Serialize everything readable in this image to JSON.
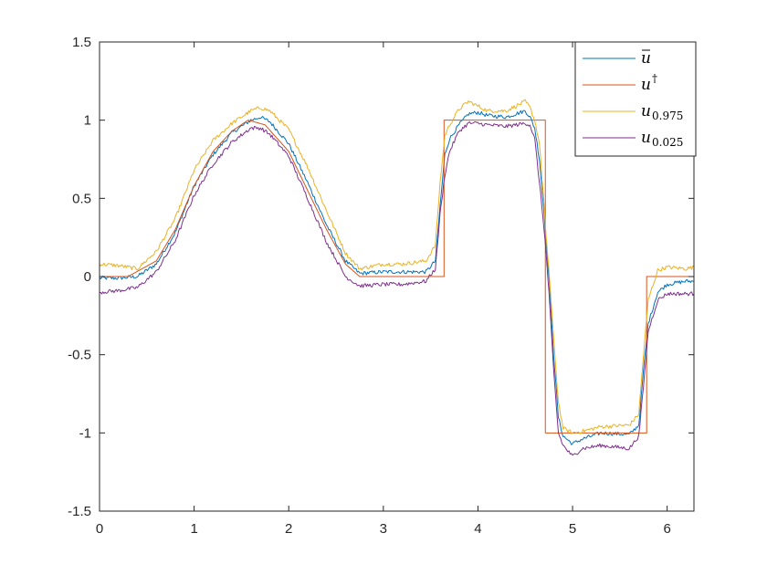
{
  "chart_data": {
    "type": "line",
    "title": "",
    "xlabel": "",
    "ylabel": "",
    "xlim": [
      0,
      6.2832
    ],
    "ylim": [
      -1.5,
      1.5
    ],
    "xticks": [
      0,
      1,
      2,
      3,
      4,
      5,
      6
    ],
    "yticks": [
      1.5,
      1,
      0.5,
      0,
      -0.5,
      -1,
      -1.5
    ],
    "xtick_labels": [
      "0",
      "1",
      "2",
      "3",
      "4",
      "5",
      "6"
    ],
    "ytick_labels": [
      "1.5",
      "1",
      "0.5",
      "0",
      "-0.5",
      "-1",
      "-1.5"
    ],
    "grid": false,
    "legend_position": "top-right",
    "series": [
      {
        "name": "ū",
        "legend_base": "u",
        "legend_sub": "",
        "legend_sup": "",
        "legend_bar": true,
        "color": "#0072BD",
        "points": [
          [
            0,
            -0.01
          ],
          [
            0.2,
            -0.01
          ],
          [
            0.4,
            0.0
          ],
          [
            0.6,
            0.08
          ],
          [
            0.8,
            0.28
          ],
          [
            1.0,
            0.58
          ],
          [
            1.2,
            0.78
          ],
          [
            1.4,
            0.92
          ],
          [
            1.6,
            1.0
          ],
          [
            1.7,
            1.02
          ],
          [
            1.8,
            0.99
          ],
          [
            2.0,
            0.85
          ],
          [
            2.2,
            0.6
          ],
          [
            2.4,
            0.33
          ],
          [
            2.6,
            0.1
          ],
          [
            2.75,
            0.02
          ],
          [
            3.0,
            0.03
          ],
          [
            3.2,
            0.03
          ],
          [
            3.45,
            0.03
          ],
          [
            3.55,
            0.1
          ],
          [
            3.6,
            0.45
          ],
          [
            3.65,
            0.78
          ],
          [
            3.7,
            0.88
          ],
          [
            3.8,
            0.97
          ],
          [
            3.9,
            1.04
          ],
          [
            4.0,
            1.05
          ],
          [
            4.1,
            1.03
          ],
          [
            4.3,
            1.02
          ],
          [
            4.5,
            1.06
          ],
          [
            4.55,
            1.02
          ],
          [
            4.6,
            0.95
          ],
          [
            4.65,
            0.75
          ],
          [
            4.7,
            0.4
          ],
          [
            4.72,
            0.22
          ],
          [
            4.75,
            0.0
          ],
          [
            4.8,
            -0.5
          ],
          [
            4.85,
            -0.9
          ],
          [
            4.9,
            -1.02
          ],
          [
            5.0,
            -1.07
          ],
          [
            5.1,
            -1.04
          ],
          [
            5.3,
            -1.0
          ],
          [
            5.6,
            -1.01
          ],
          [
            5.7,
            -0.95
          ],
          [
            5.75,
            -0.6
          ],
          [
            5.8,
            -0.3
          ],
          [
            5.9,
            -0.1
          ],
          [
            6.0,
            -0.05
          ],
          [
            6.2,
            -0.03
          ],
          [
            6.2832,
            -0.03
          ]
        ]
      },
      {
        "name": "u†",
        "legend_base": "u",
        "legend_sub": "",
        "legend_sup": "†",
        "legend_bar": false,
        "color": "#D95319",
        "points": [
          [
            0,
            0
          ],
          [
            0.3,
            0.0
          ],
          [
            0.6,
            0.1
          ],
          [
            0.8,
            0.3
          ],
          [
            1.0,
            0.58
          ],
          [
            1.2,
            0.8
          ],
          [
            1.4,
            0.93
          ],
          [
            1.57,
            1.0
          ],
          [
            1.75,
            0.97
          ],
          [
            2.0,
            0.8
          ],
          [
            2.2,
            0.55
          ],
          [
            2.4,
            0.3
          ],
          [
            2.6,
            0.08
          ],
          [
            2.75,
            0.0
          ],
          [
            3.0,
            0.0
          ],
          [
            3.3,
            0.0
          ],
          [
            3.6416,
            0.0
          ],
          [
            3.6416,
            1.0
          ],
          [
            4.7124,
            1.0
          ],
          [
            4.7124,
            -1.0
          ],
          [
            5.7832,
            -1.0
          ],
          [
            5.7832,
            0.0
          ],
          [
            6.2832,
            0.0
          ]
        ]
      },
      {
        "name": "u0.975",
        "legend_base": "u",
        "legend_sub": "0.975",
        "legend_sup": "",
        "legend_bar": false,
        "color": "#EDB120",
        "points": [
          [
            0,
            0.08
          ],
          [
            0.2,
            0.07
          ],
          [
            0.4,
            0.05
          ],
          [
            0.6,
            0.16
          ],
          [
            0.8,
            0.37
          ],
          [
            1.0,
            0.68
          ],
          [
            1.2,
            0.87
          ],
          [
            1.4,
            0.98
          ],
          [
            1.6,
            1.06
          ],
          [
            1.7,
            1.08
          ],
          [
            1.8,
            1.06
          ],
          [
            2.0,
            0.94
          ],
          [
            2.2,
            0.7
          ],
          [
            2.4,
            0.42
          ],
          [
            2.6,
            0.15
          ],
          [
            2.75,
            0.05
          ],
          [
            3.0,
            0.08
          ],
          [
            3.2,
            0.08
          ],
          [
            3.45,
            0.1
          ],
          [
            3.55,
            0.2
          ],
          [
            3.6,
            0.6
          ],
          [
            3.65,
            0.9
          ],
          [
            3.7,
            0.97
          ],
          [
            3.8,
            1.07
          ],
          [
            3.9,
            1.12
          ],
          [
            4.0,
            1.09
          ],
          [
            4.1,
            1.06
          ],
          [
            4.3,
            1.06
          ],
          [
            4.5,
            1.12
          ],
          [
            4.55,
            1.08
          ],
          [
            4.6,
            1.0
          ],
          [
            4.65,
            0.85
          ],
          [
            4.7,
            0.45
          ],
          [
            4.72,
            0.25
          ],
          [
            4.75,
            0.05
          ],
          [
            4.8,
            -0.4
          ],
          [
            4.85,
            -0.8
          ],
          [
            4.9,
            -0.97
          ],
          [
            5.0,
            -1.0
          ],
          [
            5.1,
            -0.99
          ],
          [
            5.3,
            -0.96
          ],
          [
            5.6,
            -0.95
          ],
          [
            5.7,
            -0.88
          ],
          [
            5.75,
            -0.5
          ],
          [
            5.8,
            -0.15
          ],
          [
            5.9,
            0.04
          ],
          [
            6.0,
            0.06
          ],
          [
            6.2,
            0.05
          ],
          [
            6.2832,
            0.06
          ]
        ]
      },
      {
        "name": "u0.025",
        "legend_base": "u",
        "legend_sub": "0.025",
        "legend_sup": "",
        "legend_bar": false,
        "color": "#7E2F8E",
        "points": [
          [
            0,
            -0.1
          ],
          [
            0.2,
            -0.09
          ],
          [
            0.4,
            -0.07
          ],
          [
            0.6,
            0.03
          ],
          [
            0.8,
            0.23
          ],
          [
            1.0,
            0.52
          ],
          [
            1.2,
            0.72
          ],
          [
            1.4,
            0.86
          ],
          [
            1.6,
            0.95
          ],
          [
            1.7,
            0.95
          ],
          [
            1.8,
            0.91
          ],
          [
            2.0,
            0.77
          ],
          [
            2.2,
            0.5
          ],
          [
            2.4,
            0.22
          ],
          [
            2.6,
            0.0
          ],
          [
            2.75,
            -0.06
          ],
          [
            3.0,
            -0.05
          ],
          [
            3.2,
            -0.05
          ],
          [
            3.45,
            -0.03
          ],
          [
            3.55,
            0.05
          ],
          [
            3.6,
            0.4
          ],
          [
            3.65,
            0.65
          ],
          [
            3.7,
            0.8
          ],
          [
            3.8,
            0.93
          ],
          [
            3.9,
            0.98
          ],
          [
            4.0,
            0.98
          ],
          [
            4.1,
            0.97
          ],
          [
            4.3,
            0.96
          ],
          [
            4.5,
            0.98
          ],
          [
            4.55,
            0.97
          ],
          [
            4.6,
            0.88
          ],
          [
            4.65,
            0.6
          ],
          [
            4.7,
            0.3
          ],
          [
            4.72,
            0.15
          ],
          [
            4.75,
            -0.1
          ],
          [
            4.8,
            -0.6
          ],
          [
            4.85,
            -1.0
          ],
          [
            4.9,
            -1.08
          ],
          [
            5.0,
            -1.15
          ],
          [
            5.1,
            -1.1
          ],
          [
            5.3,
            -1.08
          ],
          [
            5.6,
            -1.1
          ],
          [
            5.7,
            -1.02
          ],
          [
            5.75,
            -0.7
          ],
          [
            5.8,
            -0.35
          ],
          [
            5.9,
            -0.15
          ],
          [
            6.0,
            -0.11
          ],
          [
            6.2,
            -0.11
          ],
          [
            6.2832,
            -0.11
          ]
        ]
      }
    ]
  }
}
